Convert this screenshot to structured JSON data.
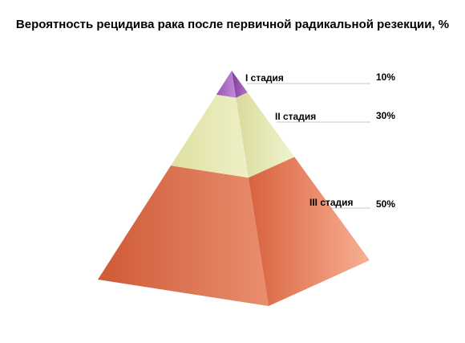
{
  "chart_data": {
    "type": "pyramid",
    "title": "Вероятность рецидива рака после первичной радикальной резекции, %",
    "categories": [
      "I стадия",
      "II стадия",
      "III стадия"
    ],
    "values": [
      10,
      30,
      50
    ],
    "value_labels": [
      "10%",
      "30%",
      "50%"
    ],
    "unit": "%",
    "legend": "none",
    "grid": false,
    "colors": {
      "I стадия": "#9b59b6",
      "II стадия": "#e6e8b4",
      "III стадия": "#e8805e"
    }
  }
}
